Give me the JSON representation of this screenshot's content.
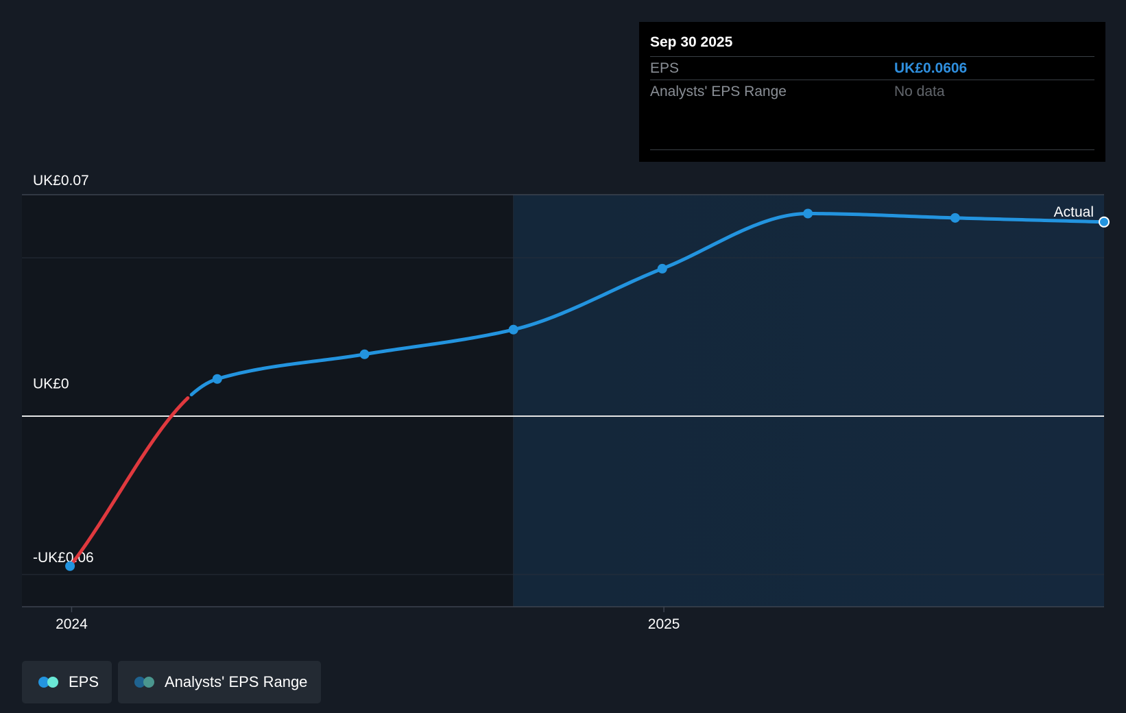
{
  "tooltip": {
    "date": "Sep 30 2025",
    "rows": [
      {
        "label": "EPS",
        "value": "UK£0.0606"
      },
      {
        "label": "Analysts' EPS Range",
        "value": "No data"
      }
    ]
  },
  "legend": [
    {
      "label": "EPS",
      "colors": [
        "#2394df",
        "#6ae8d6"
      ]
    },
    {
      "label": "Analysts' EPS Range",
      "colors": [
        "#1f6390",
        "#4a968e"
      ]
    }
  ],
  "chart_data": {
    "type": "line",
    "x_ticks": [
      {
        "value": 2024,
        "label": "2024"
      },
      {
        "value": 2025,
        "label": "2025"
      }
    ],
    "y_ticks": [
      {
        "value": 0.07,
        "label": "UK£0.07"
      },
      {
        "value": 0,
        "label": "UK£0"
      },
      {
        "value": -0.06,
        "label": "-UK£0.06"
      }
    ],
    "ylim": [
      -0.072,
      0.07
    ],
    "xlim": [
      "2023-12-28",
      "2025-09-30"
    ],
    "forecast_start": "2024-09-30",
    "annotation": "Actual",
    "colors": {
      "positive": "#2394df",
      "negative": "#e0393e",
      "background": "#151b24"
    },
    "series": [
      {
        "name": "EPS",
        "points": [
          {
            "x": "2023-12-31",
            "y": -0.058
          },
          {
            "x": "2024-03-31",
            "y": 0.0065
          },
          {
            "x": "2024-06-30",
            "y": 0.015
          },
          {
            "x": "2024-09-30",
            "y": 0.0235
          },
          {
            "x": "2024-12-31",
            "y": 0.0445
          },
          {
            "x": "2025-03-31",
            "y": 0.0635
          },
          {
            "x": "2025-06-30",
            "y": 0.062
          },
          {
            "x": "2025-09-30",
            "y": 0.0606
          }
        ]
      }
    ]
  }
}
